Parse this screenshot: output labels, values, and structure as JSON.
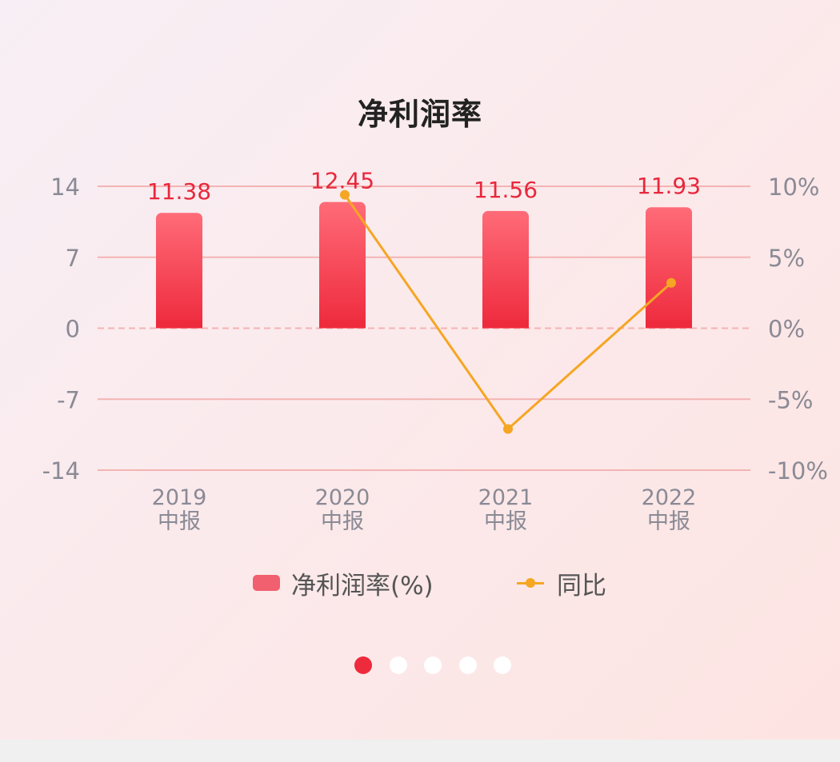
{
  "chart_data": {
    "type": "bar",
    "title": "净利润率",
    "categories": [
      [
        "2019",
        "中报"
      ],
      [
        "2020",
        "中报"
      ],
      [
        "2021",
        "中报"
      ],
      [
        "2022",
        "中报"
      ]
    ],
    "series": [
      {
        "name": "净利润率(%)",
        "type": "bar",
        "axis": "left",
        "values": [
          11.38,
          12.45,
          11.56,
          11.93
        ],
        "value_labels": [
          "11.38",
          "12.45",
          "11.56",
          "11.93"
        ],
        "color": "#f0606e"
      },
      {
        "name": "同比",
        "type": "line",
        "axis": "right",
        "values": [
          null,
          9.4,
          -7.1,
          3.2
        ],
        "color": "#f5a623"
      }
    ],
    "y_left": {
      "ticks": [
        14,
        7,
        0,
        -7,
        -14
      ],
      "tick_labels": [
        "14",
        "7",
        "0",
        "-7",
        "-14"
      ],
      "ylim": [
        -14,
        14
      ]
    },
    "y_right": {
      "ticks": [
        10,
        5,
        0,
        -5,
        -10
      ],
      "tick_labels": [
        "10%",
        "5%",
        "0%",
        "-5%",
        "-10%"
      ],
      "ylim": [
        -10,
        10
      ]
    },
    "grid": true,
    "legend_position": "bottom"
  },
  "colors": {
    "bar_top": "#ff6b78",
    "bar_bottom": "#ee2a3d",
    "line": "#f5a623",
    "grid": "#f4b3b3",
    "value_label": "#e8283c",
    "tick_text": "#8a8a95",
    "dot_active": "#ee2a3d",
    "dot_inactive": "#ffffff"
  },
  "pager": {
    "total": 5,
    "active_index": 0
  }
}
